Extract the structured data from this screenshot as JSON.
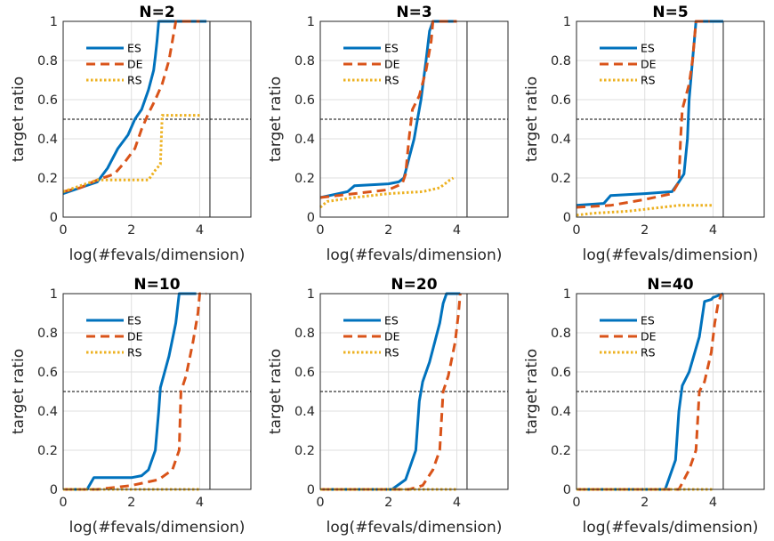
{
  "chart_data": [
    {
      "type": "line",
      "title": "N=2",
      "xlabel": "log(#fevals/dimension)",
      "ylabel": "target ratio",
      "xlim": [
        0,
        5.5
      ],
      "ylim": [
        0,
        1
      ],
      "xticks": [
        "0",
        "2",
        "4"
      ],
      "yticks": [
        "0",
        "0.2",
        "0.4",
        "0.6",
        "0.8",
        "1"
      ],
      "grid": true,
      "legend": "top-left",
      "reference_line": 0.5,
      "budget_line_x": 4.3,
      "series": [
        {
          "name": "ES",
          "color": "#0072BD",
          "dash": "solid",
          "points": [
            [
              0,
              0.12
            ],
            [
              0.5,
              0.15
            ],
            [
              1,
              0.18
            ],
            [
              1.3,
              0.25
            ],
            [
              1.6,
              0.35
            ],
            [
              1.9,
              0.42
            ],
            [
              2.1,
              0.5
            ],
            [
              2.3,
              0.55
            ],
            [
              2.5,
              0.65
            ],
            [
              2.65,
              0.75
            ],
            [
              2.7,
              0.82
            ],
            [
              2.75,
              0.9
            ],
            [
              2.8,
              1.0
            ],
            [
              4.2,
              1.0
            ]
          ]
        },
        {
          "name": "DE",
          "color": "#D95319",
          "dash": "dashed",
          "points": [
            [
              0,
              0.13
            ],
            [
              0.5,
              0.15
            ],
            [
              1,
              0.19
            ],
            [
              1.5,
              0.22
            ],
            [
              1.8,
              0.28
            ],
            [
              2.1,
              0.35
            ],
            [
              2.3,
              0.45
            ],
            [
              2.5,
              0.53
            ],
            [
              2.7,
              0.6
            ],
            [
              2.9,
              0.68
            ],
            [
              3.1,
              0.8
            ],
            [
              3.2,
              0.9
            ],
            [
              3.3,
              1.0
            ],
            [
              4.0,
              1.0
            ]
          ]
        },
        {
          "name": "RS",
          "color": "#EDB120",
          "dash": "dotted",
          "points": [
            [
              0,
              0.13
            ],
            [
              0.5,
              0.16
            ],
            [
              1,
              0.19
            ],
            [
              2.5,
              0.19
            ],
            [
              2.7,
              0.24
            ],
            [
              2.85,
              0.27
            ],
            [
              2.9,
              0.52
            ],
            [
              4.0,
              0.52
            ]
          ]
        }
      ]
    },
    {
      "type": "line",
      "title": "N=3",
      "xlabel": "log(#fevals/dimension)",
      "ylabel": "target ratio",
      "xlim": [
        0,
        5.5
      ],
      "ylim": [
        0,
        1
      ],
      "xticks": [
        "0",
        "2",
        "4"
      ],
      "yticks": [
        "0",
        "0.2",
        "0.4",
        "0.6",
        "0.8",
        "1"
      ],
      "grid": true,
      "legend": "top-left",
      "reference_line": 0.5,
      "budget_line_x": 4.3,
      "series": [
        {
          "name": "ES",
          "color": "#0072BD",
          "dash": "solid",
          "points": [
            [
              0,
              0.1
            ],
            [
              0.8,
              0.13
            ],
            [
              1,
              0.16
            ],
            [
              2,
              0.17
            ],
            [
              2.3,
              0.18
            ],
            [
              2.45,
              0.2
            ],
            [
              2.6,
              0.3
            ],
            [
              2.75,
              0.4
            ],
            [
              2.85,
              0.5
            ],
            [
              2.95,
              0.6
            ],
            [
              3.1,
              0.8
            ],
            [
              3.2,
              0.95
            ],
            [
              3.3,
              1.0
            ],
            [
              4.0,
              1.0
            ]
          ]
        },
        {
          "name": "DE",
          "color": "#D95319",
          "dash": "dashed",
          "points": [
            [
              0,
              0.1
            ],
            [
              1,
              0.12
            ],
            [
              2,
              0.14
            ],
            [
              2.4,
              0.17
            ],
            [
              2.5,
              0.22
            ],
            [
              2.6,
              0.4
            ],
            [
              2.7,
              0.55
            ],
            [
              2.9,
              0.62
            ],
            [
              3.1,
              0.75
            ],
            [
              3.25,
              0.9
            ],
            [
              3.3,
              1.0
            ],
            [
              4.0,
              1.0
            ]
          ]
        },
        {
          "name": "RS",
          "color": "#EDB120",
          "dash": "dotted",
          "points": [
            [
              0,
              0.05
            ],
            [
              0.2,
              0.08
            ],
            [
              1,
              0.1
            ],
            [
              2,
              0.12
            ],
            [
              3,
              0.13
            ],
            [
              3.5,
              0.15
            ],
            [
              3.8,
              0.19
            ],
            [
              3.9,
              0.2
            ]
          ]
        }
      ]
    },
    {
      "type": "line",
      "title": "N=5",
      "xlabel": "log(#fevals/dimension)",
      "ylabel": "target ratio",
      "xlim": [
        0,
        5.5
      ],
      "ylim": [
        0,
        1
      ],
      "xticks": [
        "0",
        "2",
        "4"
      ],
      "yticks": [
        "0",
        "0.2",
        "0.4",
        "0.6",
        "0.8",
        "1"
      ],
      "grid": true,
      "legend": "top-left",
      "reference_line": 0.5,
      "budget_line_x": 4.3,
      "series": [
        {
          "name": "ES",
          "color": "#0072BD",
          "dash": "solid",
          "points": [
            [
              0,
              0.06
            ],
            [
              0.8,
              0.07
            ],
            [
              1,
              0.11
            ],
            [
              2,
              0.12
            ],
            [
              2.8,
              0.13
            ],
            [
              3.0,
              0.18
            ],
            [
              3.15,
              0.22
            ],
            [
              3.25,
              0.4
            ],
            [
              3.3,
              0.6
            ],
            [
              3.4,
              0.8
            ],
            [
              3.45,
              0.9
            ],
            [
              3.5,
              1.0
            ],
            [
              4.3,
              1.0
            ]
          ]
        },
        {
          "name": "DE",
          "color": "#D95319",
          "dash": "dashed",
          "points": [
            [
              0,
              0.05
            ],
            [
              1,
              0.06
            ],
            [
              2,
              0.09
            ],
            [
              2.8,
              0.12
            ],
            [
              3.0,
              0.18
            ],
            [
              3.05,
              0.4
            ],
            [
              3.1,
              0.55
            ],
            [
              3.3,
              0.68
            ],
            [
              3.4,
              0.8
            ],
            [
              3.5,
              1.0
            ],
            [
              3.9,
              1.0
            ]
          ]
        },
        {
          "name": "RS",
          "color": "#EDB120",
          "dash": "dotted",
          "points": [
            [
              0,
              0.01
            ],
            [
              0.5,
              0.02
            ],
            [
              1.5,
              0.03
            ],
            [
              2,
              0.04
            ],
            [
              2.5,
              0.05
            ],
            [
              3,
              0.06
            ],
            [
              4,
              0.06
            ]
          ]
        }
      ]
    },
    {
      "type": "line",
      "title": "N=10",
      "xlabel": "log(#fevals/dimension)",
      "ylabel": "target ratio",
      "xlim": [
        0,
        5.5
      ],
      "ylim": [
        0,
        1
      ],
      "xticks": [
        "0",
        "2",
        "4"
      ],
      "yticks": [
        "0",
        "0.2",
        "0.4",
        "0.6",
        "0.8",
        "1"
      ],
      "grid": true,
      "legend": "top-left",
      "reference_line": 0.5,
      "budget_line_x": 4.3,
      "series": [
        {
          "name": "ES",
          "color": "#0072BD",
          "dash": "solid",
          "points": [
            [
              0,
              0.0
            ],
            [
              0.7,
              0.0
            ],
            [
              0.9,
              0.06
            ],
            [
              2,
              0.06
            ],
            [
              2.3,
              0.07
            ],
            [
              2.5,
              0.1
            ],
            [
              2.7,
              0.2
            ],
            [
              2.8,
              0.4
            ],
            [
              2.85,
              0.52
            ],
            [
              3.1,
              0.68
            ],
            [
              3.3,
              0.85
            ],
            [
              3.4,
              1.0
            ],
            [
              3.9,
              1.0
            ]
          ]
        },
        {
          "name": "DE",
          "color": "#D95319",
          "dash": "dashed",
          "points": [
            [
              0,
              0.0
            ],
            [
              1,
              0.0
            ],
            [
              2,
              0.02
            ],
            [
              2.8,
              0.05
            ],
            [
              3.2,
              0.1
            ],
            [
              3.4,
              0.2
            ],
            [
              3.45,
              0.5
            ],
            [
              3.6,
              0.58
            ],
            [
              3.8,
              0.75
            ],
            [
              3.95,
              0.9
            ],
            [
              4.0,
              1.0
            ],
            [
              4.2,
              1.0
            ]
          ]
        },
        {
          "name": "RS",
          "color": "#EDB120",
          "dash": "dotted",
          "points": [
            [
              0,
              0.0
            ],
            [
              4.0,
              0.0
            ]
          ]
        }
      ]
    },
    {
      "type": "line",
      "title": "N=20",
      "xlabel": "log(#fevals/dimension)",
      "ylabel": "target ratio",
      "xlim": [
        0,
        5.5
      ],
      "ylim": [
        0,
        1
      ],
      "xticks": [
        "0",
        "2",
        "4"
      ],
      "yticks": [
        "0",
        "0.2",
        "0.4",
        "0.6",
        "0.8",
        "1"
      ],
      "grid": true,
      "legend": "top-left",
      "reference_line": 0.5,
      "budget_line_x": 4.3,
      "series": [
        {
          "name": "ES",
          "color": "#0072BD",
          "dash": "solid",
          "points": [
            [
              0,
              0.0
            ],
            [
              2.1,
              0.0
            ],
            [
              2.5,
              0.05
            ],
            [
              2.8,
              0.2
            ],
            [
              2.9,
              0.45
            ],
            [
              3.0,
              0.55
            ],
            [
              3.2,
              0.65
            ],
            [
              3.5,
              0.85
            ],
            [
              3.6,
              0.95
            ],
            [
              3.7,
              1.0
            ],
            [
              4.1,
              1.0
            ]
          ]
        },
        {
          "name": "DE",
          "color": "#D95319",
          "dash": "dashed",
          "points": [
            [
              0,
              0.0
            ],
            [
              2.6,
              0.0
            ],
            [
              3.0,
              0.02
            ],
            [
              3.3,
              0.1
            ],
            [
              3.5,
              0.2
            ],
            [
              3.6,
              0.5
            ],
            [
              3.75,
              0.58
            ],
            [
              3.95,
              0.75
            ],
            [
              4.05,
              0.9
            ],
            [
              4.1,
              1.0
            ]
          ]
        },
        {
          "name": "RS",
          "color": "#EDB120",
          "dash": "dotted",
          "points": [
            [
              0,
              0.0
            ],
            [
              4.0,
              0.0
            ]
          ]
        }
      ]
    },
    {
      "type": "line",
      "title": "N=40",
      "xlabel": "log(#fevals/dimension)",
      "ylabel": "target ratio",
      "xlim": [
        0,
        5.5
      ],
      "ylim": [
        0,
        1
      ],
      "xticks": [
        "0",
        "2",
        "4"
      ],
      "yticks": [
        "0",
        "0.2",
        "0.4",
        "0.6",
        "0.8",
        "1"
      ],
      "grid": true,
      "legend": "top-left",
      "reference_line": 0.5,
      "budget_line_x": 4.3,
      "series": [
        {
          "name": "ES",
          "color": "#0072BD",
          "dash": "solid",
          "points": [
            [
              0,
              0.0
            ],
            [
              2.6,
              0.0
            ],
            [
              2.9,
              0.15
            ],
            [
              3.0,
              0.4
            ],
            [
              3.1,
              0.53
            ],
            [
              3.3,
              0.6
            ],
            [
              3.6,
              0.78
            ],
            [
              3.75,
              0.96
            ],
            [
              3.95,
              0.97
            ],
            [
              4.0,
              0.98
            ],
            [
              4.3,
              1.0
            ]
          ]
        },
        {
          "name": "DE",
          "color": "#D95319",
          "dash": "dashed",
          "points": [
            [
              0,
              0.0
            ],
            [
              3.0,
              0.0
            ],
            [
              3.3,
              0.1
            ],
            [
              3.5,
              0.2
            ],
            [
              3.6,
              0.5
            ],
            [
              3.75,
              0.55
            ],
            [
              3.95,
              0.7
            ],
            [
              4.05,
              0.85
            ],
            [
              4.15,
              0.95
            ],
            [
              4.25,
              1.0
            ]
          ]
        },
        {
          "name": "RS",
          "color": "#EDB120",
          "dash": "dotted",
          "points": [
            [
              0,
              0.0
            ],
            [
              4.0,
              0.0
            ]
          ]
        }
      ]
    }
  ]
}
